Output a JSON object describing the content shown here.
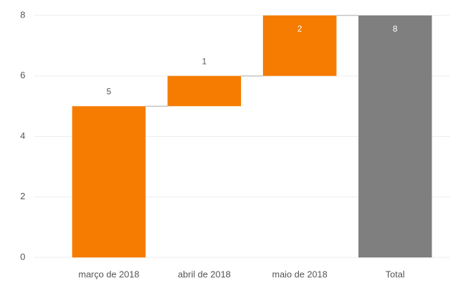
{
  "chart_data": {
    "type": "waterfall",
    "categories": [
      "março de 2018",
      "abril de 2018",
      "maio de 2018",
      "Total"
    ],
    "values": [
      5,
      1,
      2,
      8
    ],
    "is_total": [
      false,
      false,
      false,
      true
    ],
    "color": "#f57c00",
    "total_color": "#7f7f7f",
    "ylim": [
      0,
      8
    ],
    "yticks": [
      0,
      2,
      4,
      6,
      8
    ],
    "grid": true
  }
}
